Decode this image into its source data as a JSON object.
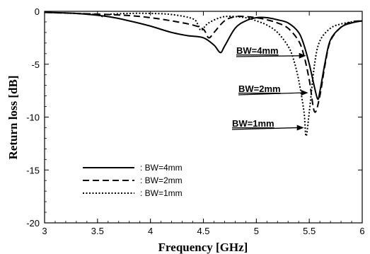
{
  "chart_data": {
    "type": "line",
    "xlabel": "Frequency [GHz]",
    "ylabel": "Return loss [dB]",
    "xlim": [
      3,
      6
    ],
    "ylim": [
      -20,
      0
    ],
    "xticks": [
      "3",
      "3.5",
      "4",
      "4.5",
      "5",
      "5.5",
      "6"
    ],
    "yticks": [
      "0",
      "-5",
      "-10",
      "-15",
      "-20"
    ],
    "grid": false,
    "legend_position": "bottom-left",
    "series": [
      {
        "name": ": BW=4mm",
        "style": "solid",
        "x": [
          3.0,
          3.3,
          3.6,
          3.8,
          4.0,
          4.2,
          4.35,
          4.5,
          4.6,
          4.66,
          4.7,
          4.8,
          4.9,
          5.0,
          5.1,
          5.2,
          5.3,
          5.4,
          5.45,
          5.5,
          5.55,
          5.58,
          5.6,
          5.65,
          5.7,
          5.8,
          5.9,
          6.0
        ],
        "values": [
          -0.1,
          -0.2,
          -0.5,
          -0.9,
          -1.4,
          -2.0,
          -2.3,
          -2.5,
          -3.2,
          -3.9,
          -3.3,
          -1.6,
          -0.9,
          -0.6,
          -0.6,
          -0.8,
          -1.1,
          -2.0,
          -3.2,
          -5.0,
          -7.2,
          -8.3,
          -7.6,
          -4.8,
          -2.7,
          -1.5,
          -1.1,
          -0.9
        ]
      },
      {
        "name": ": BW=2mm",
        "style": "dashed",
        "x": [
          3.0,
          3.3,
          3.6,
          3.8,
          4.0,
          4.2,
          4.4,
          4.5,
          4.55,
          4.6,
          4.7,
          4.8,
          4.9,
          5.0,
          5.1,
          5.2,
          5.3,
          5.4,
          5.45,
          5.5,
          5.55,
          5.6,
          5.65,
          5.7,
          5.8,
          5.9,
          6.0
        ],
        "values": [
          -0.1,
          -0.2,
          -0.3,
          -0.4,
          -0.6,
          -0.9,
          -1.3,
          -1.7,
          -2.5,
          -2.0,
          -0.9,
          -0.5,
          -0.5,
          -0.6,
          -0.8,
          -1.1,
          -1.6,
          -2.8,
          -4.2,
          -6.5,
          -9.5,
          -8.0,
          -5.0,
          -2.8,
          -1.5,
          -1.0,
          -0.9
        ]
      },
      {
        "name": ": BW=1mm",
        "style": "dotted",
        "x": [
          3.0,
          3.3,
          3.5,
          3.55,
          3.6,
          3.8,
          4.0,
          4.2,
          4.4,
          4.45,
          4.48,
          4.55,
          4.7,
          4.9,
          5.0,
          5.1,
          5.2,
          5.3,
          5.35,
          5.4,
          5.45,
          5.47,
          5.5,
          5.55,
          5.6,
          5.7,
          5.8,
          5.9,
          6.0
        ],
        "values": [
          -0.1,
          -0.2,
          -0.3,
          -0.5,
          -0.3,
          -0.2,
          -0.2,
          -0.3,
          -0.7,
          -1.3,
          -1.8,
          -1.1,
          -0.5,
          -0.6,
          -0.9,
          -1.3,
          -2.0,
          -3.3,
          -4.5,
          -6.5,
          -9.5,
          -11.8,
          -9.5,
          -5.0,
          -2.8,
          -1.6,
          -1.2,
          -1.0,
          -0.9
        ]
      }
    ],
    "annotations": [
      {
        "text": "BW=4mm",
        "arrow_to": [
          5.47,
          -4.2
        ]
      },
      {
        "text": "BW=2mm",
        "arrow_to": [
          5.49,
          -7.7
        ]
      },
      {
        "text": "BW=1mm",
        "arrow_to": [
          5.45,
          -11.0
        ]
      }
    ]
  }
}
